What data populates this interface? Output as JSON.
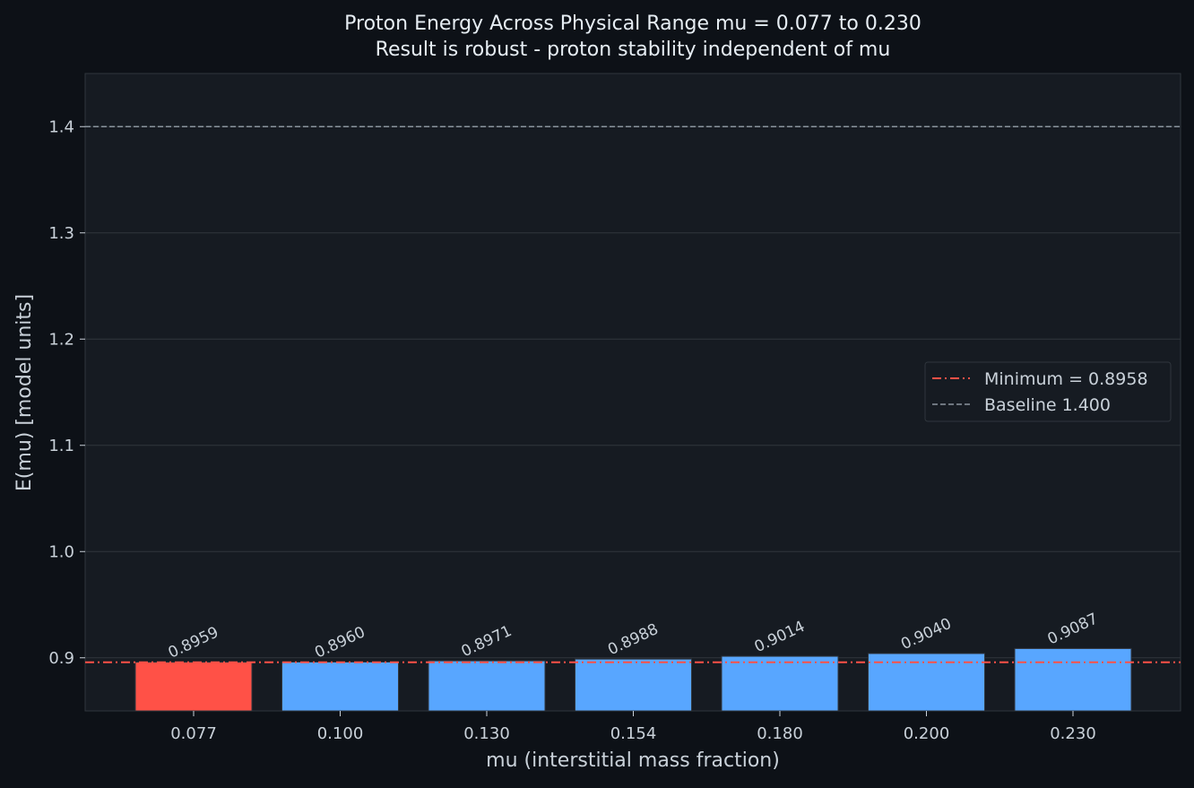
{
  "colors": {
    "background": "#0d1117",
    "plot_background": "#161b22",
    "grid": "#30363d",
    "text": "#c9d1d9",
    "title_text": "#e6edf3",
    "bar_default": "#58a6ff",
    "bar_minimum": "#ff5147",
    "minimum_line": "#ff5147",
    "baseline_line": "#8b949e"
  },
  "chart_data": {
    "type": "bar",
    "title": "Proton Energy Across Physical Range  mu = 0.077 to 0.230",
    "subtitle": "Result is robust - proton stability independent of mu",
    "xlabel": "mu  (interstitial mass fraction)",
    "ylabel": "E(mu)  [model units]",
    "categories": [
      "0.077",
      "0.100",
      "0.130",
      "0.154",
      "0.180",
      "0.200",
      "0.230"
    ],
    "values": [
      0.8959,
      0.896,
      0.8971,
      0.8988,
      0.9014,
      0.904,
      0.9087
    ],
    "data_labels": [
      "0.8959",
      "0.8960",
      "0.8971",
      "0.8988",
      "0.9014",
      "0.9040",
      "0.9087"
    ],
    "highlight_index": 0,
    "ylim": [
      0.85,
      1.45
    ],
    "yticks": [
      0.9,
      1.0,
      1.1,
      1.2,
      1.3,
      1.4
    ],
    "ytick_labels": [
      "0.9",
      "1.0",
      "1.1",
      "1.2",
      "1.3",
      "1.4"
    ],
    "reference_lines": [
      {
        "name": "Minimum = 0.8958",
        "value": 0.8958,
        "style": "dashdot"
      },
      {
        "name": "Baseline 1.400",
        "value": 1.4,
        "style": "dashed"
      }
    ],
    "legend_position": "center-right",
    "grid": "horizontal"
  }
}
